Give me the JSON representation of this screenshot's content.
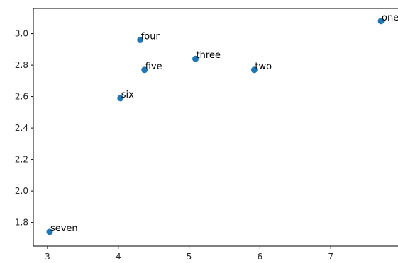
{
  "chart_data": {
    "type": "scatter",
    "title": "",
    "xlabel": "",
    "ylabel": "",
    "xlim": [
      2.8,
      7.95
    ],
    "ylim": [
      1.65,
      3.16
    ],
    "xticks": [
      3,
      4,
      5,
      6,
      7
    ],
    "yticks": [
      1.8,
      2.0,
      2.2,
      2.4,
      2.6,
      2.8,
      3.0
    ],
    "x_tick_labels": [
      "3",
      "4",
      "5",
      "6",
      "7"
    ],
    "y_tick_labels": [
      "1.8",
      "2.0",
      "2.2",
      "2.4",
      "2.6",
      "2.8",
      "3.0"
    ],
    "grid": false,
    "marker_color": "#1f77b4",
    "points": [
      {
        "label": "one",
        "x": 7.71,
        "y": 3.08
      },
      {
        "label": "two",
        "x": 5.92,
        "y": 2.77
      },
      {
        "label": "three",
        "x": 5.09,
        "y": 2.84
      },
      {
        "label": "four",
        "x": 4.31,
        "y": 2.96
      },
      {
        "label": "five",
        "x": 4.37,
        "y": 2.77
      },
      {
        "label": "six",
        "x": 4.03,
        "y": 2.59
      },
      {
        "label": "seven",
        "x": 3.03,
        "y": 1.74
      }
    ]
  }
}
